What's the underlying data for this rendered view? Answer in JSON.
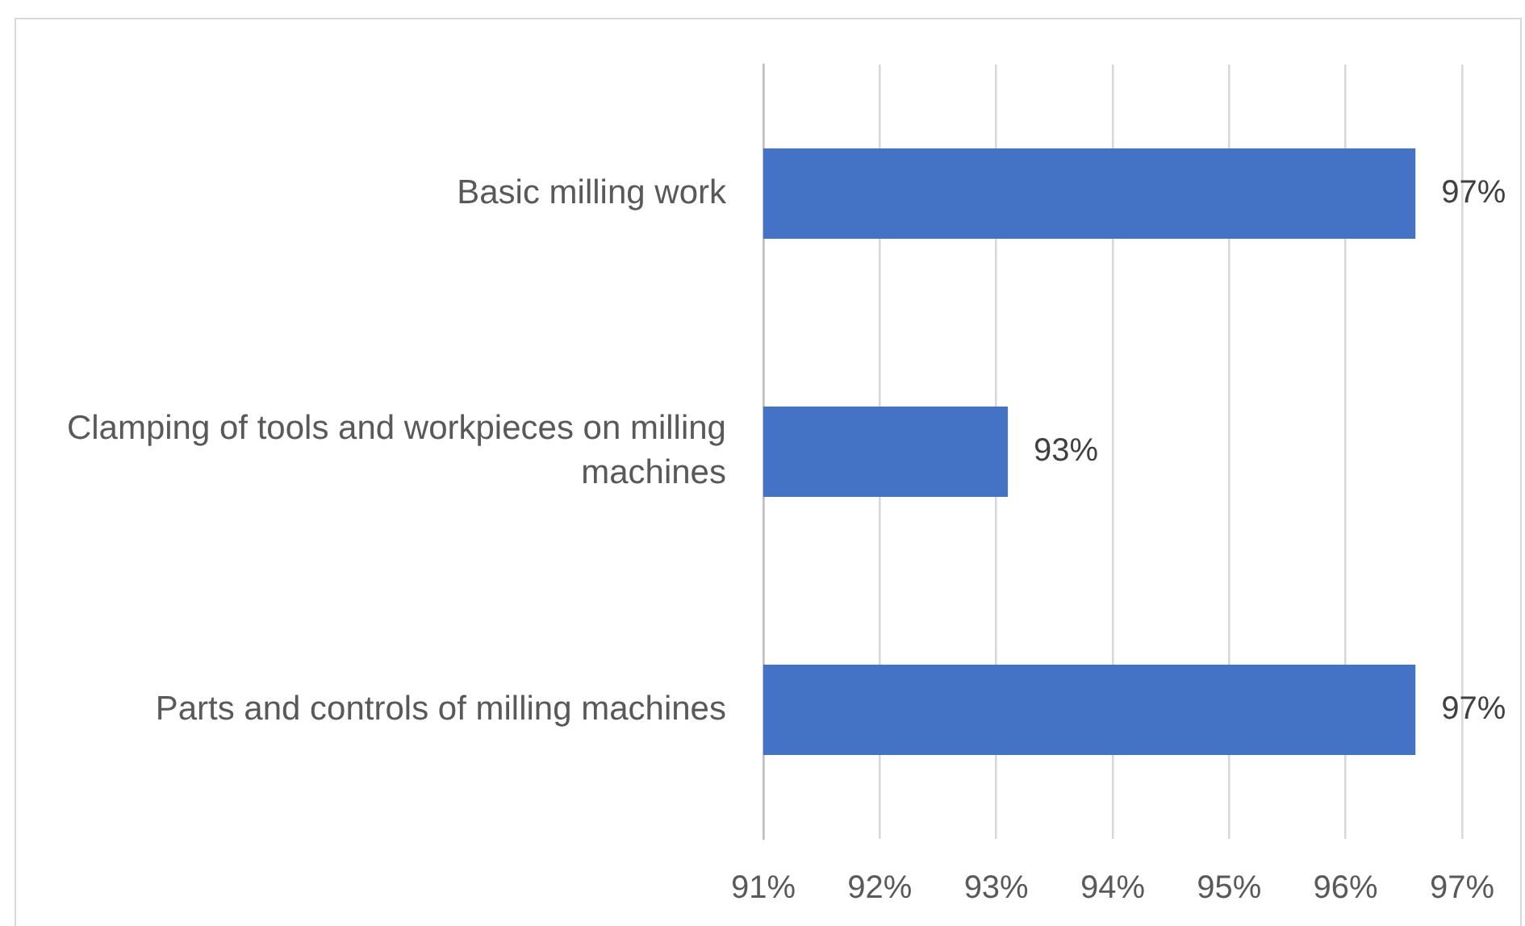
{
  "chart_data": {
    "type": "bar",
    "orientation": "horizontal",
    "categories": [
      "Basic milling work",
      "Clamping of tools and workpieces on milling machines",
      "Parts and controls of milling machines"
    ],
    "values": [
      96.6,
      93.1,
      96.6
    ],
    "color": "#4472c4",
    "value_labels": [
      "97%",
      "93%",
      "97%"
    ],
    "xlim": [
      91,
      97
    ],
    "xticks": [
      {
        "value": 91,
        "label": "91%"
      },
      {
        "value": 92,
        "label": "92%"
      },
      {
        "value": 93,
        "label": "93%"
      },
      {
        "value": 94,
        "label": "94%"
      },
      {
        "value": 95,
        "label": "95%"
      },
      {
        "value": 96,
        "label": "96%"
      },
      {
        "value": 97,
        "label": "97%"
      }
    ],
    "grid": "x",
    "legend": false
  }
}
